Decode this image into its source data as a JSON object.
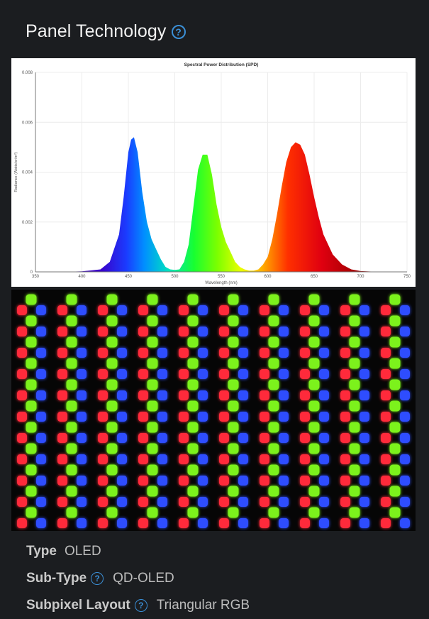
{
  "panel": {
    "title": "Panel Technology"
  },
  "chart_data": {
    "type": "area",
    "title": "Spectral Power Distribution (SPD)",
    "xlabel": "Wavelength (nm)",
    "ylabel": "Radiance (Watts/sr/m²)",
    "xlim": [
      350,
      750
    ],
    "ylim": [
      0,
      0.008
    ],
    "x_ticks": [
      350,
      400,
      450,
      500,
      550,
      600,
      650,
      700,
      750
    ],
    "y_ticks": [
      0,
      0.002,
      0.004,
      0.006,
      0.008
    ],
    "y_tick_labels": [
      "0",
      "0.002",
      "0.004",
      "0.006",
      "0.008"
    ],
    "grid": true,
    "series": [
      {
        "x": [
          380,
          400,
          420,
          430,
          440,
          445,
          450,
          453,
          456,
          460,
          465,
          470,
          475,
          480,
          485,
          490,
          495,
          500,
          505,
          510,
          515,
          520,
          525,
          530,
          535,
          540,
          545,
          550,
          555,
          560,
          565,
          570,
          575,
          580,
          585,
          590,
          595,
          600,
          605,
          610,
          615,
          620,
          625,
          630,
          635,
          640,
          645,
          650,
          655,
          660,
          670,
          680,
          690,
          700,
          720
        ],
        "y": [
          0,
          2e-05,
          0.0001,
          0.0004,
          0.0015,
          0.003,
          0.0048,
          0.0053,
          0.0054,
          0.0048,
          0.0032,
          0.002,
          0.0013,
          0.0009,
          0.0005,
          0.0002,
          0.0001,
          8e-05,
          0.0001,
          0.0004,
          0.0011,
          0.0026,
          0.0041,
          0.0047,
          0.0047,
          0.0039,
          0.0027,
          0.0018,
          0.0012,
          0.0008,
          0.0004,
          0.0002,
          0.0001,
          5e-05,
          5e-05,
          0.0001,
          0.0003,
          0.0006,
          0.0013,
          0.0023,
          0.0034,
          0.0044,
          0.005,
          0.0052,
          0.0051,
          0.0047,
          0.0039,
          0.003,
          0.0022,
          0.0015,
          0.0007,
          0.0003,
          0.0001,
          3e-05,
          0
        ]
      }
    ]
  },
  "subpixel_photo": {
    "colors": {
      "red": "#ff2a3a",
      "green": "#7cf21a",
      "blue": "#2f4dff"
    },
    "rows": 11,
    "columns": 10
  },
  "specs": [
    {
      "label": "Type",
      "value": "OLED",
      "help": false
    },
    {
      "label": "Sub-Type",
      "value": "QD-OLED",
      "help": true
    },
    {
      "label": "Subpixel Layout",
      "value": "Triangular RGB",
      "help": true
    }
  ],
  "icons": {
    "help": "?"
  }
}
